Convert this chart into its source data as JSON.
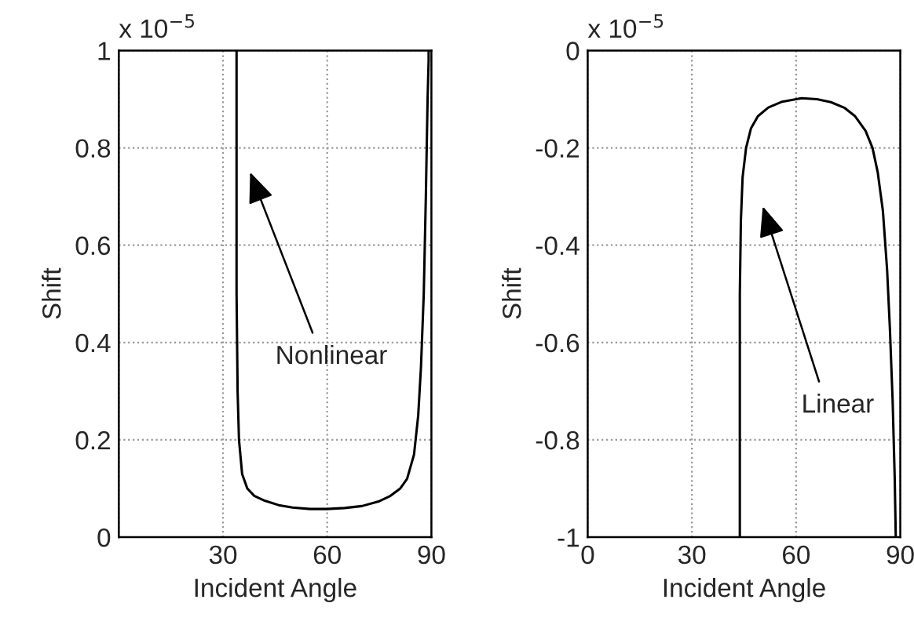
{
  "chart_data": [
    {
      "type": "line",
      "xlabel": "Incident Angle",
      "ylabel": "Shift",
      "annotations": [
        "x 10$^{−5}$",
        "Nonlinear"
      ],
      "series": [
        {
          "color": "#000000",
          "x": [
            33.9,
            33.9,
            34.2,
            34.6,
            35.5,
            37,
            39,
            42,
            46,
            50,
            55,
            60,
            65,
            70,
            75,
            78,
            81,
            83,
            85,
            86.2,
            87,
            87.8,
            88.4,
            88.9,
            89.2,
            89.2
          ],
          "values": [
            1,
            0.5,
            0.3,
            0.2,
            0.13,
            0.1,
            0.085,
            0.075,
            0.066,
            0.061,
            0.058,
            0.058,
            0.06,
            0.064,
            0.074,
            0.084,
            0.1,
            0.12,
            0.17,
            0.25,
            0.35,
            0.5,
            0.7,
            0.9,
            0.98,
            1
          ]
        }
      ],
      "xlim": [
        0,
        90
      ],
      "xticks": [
        {
          "value": 0,
          "label": null
        },
        30,
        60,
        90
      ],
      "ylim": [
        0,
        1
      ],
      "yticks": [
        0,
        0.2,
        0.4,
        0.6,
        0.8,
        1
      ],
      "grid": true,
      "line_style": "solid"
    },
    {
      "type": "line",
      "xlabel": "Incident Angle",
      "ylabel": "Shift",
      "annotations": [
        "x 10$^{−5}$",
        "Linear"
      ],
      "series": [
        {
          "color": "#000000",
          "x": [
            43.8,
            43.8,
            44.1,
            44.6,
            45.6,
            47,
            49,
            52,
            56,
            61.6,
            66,
            70,
            74,
            77,
            80,
            82,
            83.5,
            85,
            86.2,
            87,
            87.8,
            88.4,
            88.7
          ],
          "values": [
            -1,
            -0.5,
            -0.35,
            -0.26,
            -0.2,
            -0.16,
            -0.135,
            -0.117,
            -0.105,
            -0.098,
            -0.1,
            -0.106,
            -0.118,
            -0.135,
            -0.165,
            -0.2,
            -0.25,
            -0.33,
            -0.45,
            -0.57,
            -0.72,
            -0.88,
            -1
          ]
        }
      ],
      "xlim": [
        0,
        90
      ],
      "xticks": [
        0,
        30,
        60,
        90
      ],
      "ylim": [
        -1,
        0
      ],
      "yticks": [
        -1,
        -0.8,
        -0.6,
        -0.4,
        -0.2,
        0
      ],
      "grid": true,
      "line_style": "solid"
    }
  ]
}
